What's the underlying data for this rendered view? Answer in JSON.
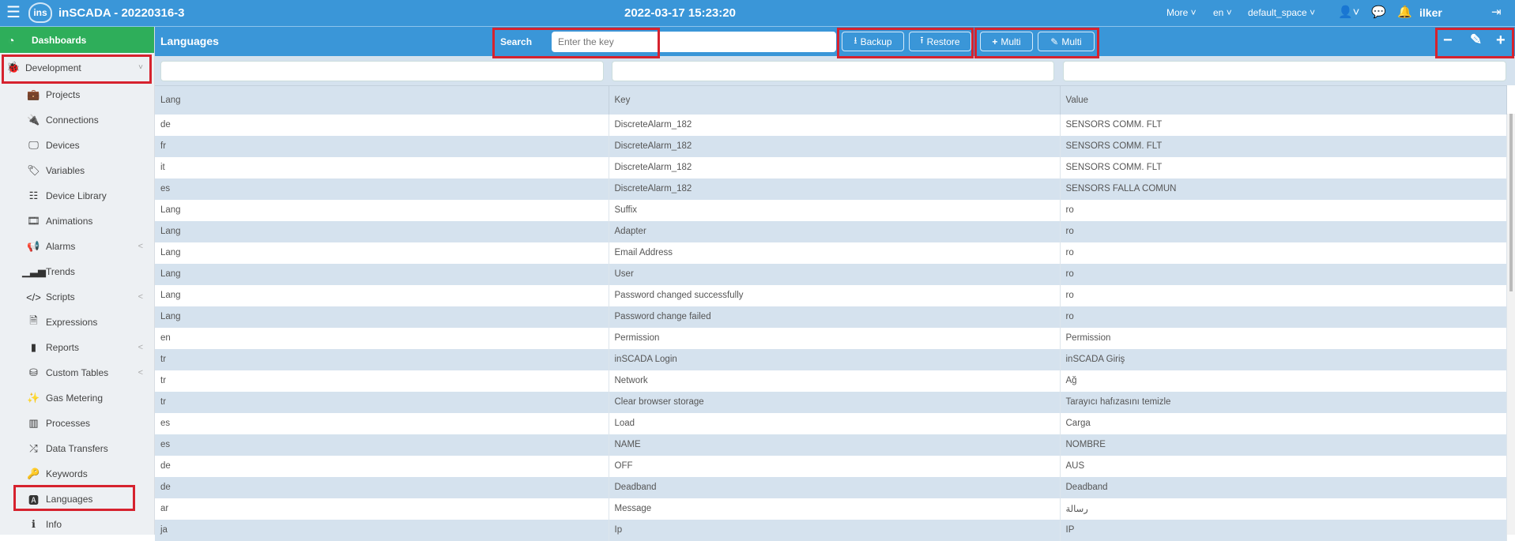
{
  "topbar": {
    "title": "inSCADA - 20220316-3",
    "logo_text": "ins",
    "datetime": "2022-03-17 15:23:20",
    "more": "More",
    "lang": "en",
    "space": "default_space",
    "user": "ilker"
  },
  "sidebar": {
    "dashboards": "Dashboards",
    "development": "Development",
    "items": [
      {
        "label": "Projects",
        "icon": "briefcase-icon",
        "g": "💼",
        "chev": false
      },
      {
        "label": "Connections",
        "icon": "plug-icon",
        "g": "🔌",
        "chev": false
      },
      {
        "label": "Devices",
        "icon": "monitor-icon",
        "g": "🖵",
        "chev": false
      },
      {
        "label": "Variables",
        "icon": "tags-icon",
        "g": "🏷",
        "chev": false
      },
      {
        "label": "Device Library",
        "icon": "sitemap-icon",
        "g": "☷",
        "chev": false
      },
      {
        "label": "Animations",
        "icon": "film-icon",
        "g": "🎞",
        "chev": false
      },
      {
        "label": "Alarms",
        "icon": "bullhorn-icon",
        "g": "📢",
        "chev": true
      },
      {
        "label": "Trends",
        "icon": "signal-icon",
        "g": "▁▃▅",
        "chev": false
      },
      {
        "label": "Scripts",
        "icon": "code-icon",
        "g": "</>",
        "chev": true
      },
      {
        "label": "Expressions",
        "icon": "file-code-icon",
        "g": "🗎",
        "chev": false
      },
      {
        "label": "Reports",
        "icon": "file-icon",
        "g": "▮",
        "chev": true
      },
      {
        "label": "Custom Tables",
        "icon": "database-icon",
        "g": "⛁",
        "chev": true
      },
      {
        "label": "Gas Metering",
        "icon": "magic-wand-icon",
        "g": "✨",
        "chev": false
      },
      {
        "label": "Processes",
        "icon": "microchip-icon",
        "g": "▥",
        "chev": false
      },
      {
        "label": "Data Transfers",
        "icon": "shuffle-icon",
        "g": "⤮",
        "chev": false
      },
      {
        "label": "Keywords",
        "icon": "key-icon",
        "g": "🔑",
        "chev": false
      },
      {
        "label": "Languages",
        "icon": "language-icon",
        "g": "🅰",
        "chev": false
      },
      {
        "label": "Info",
        "icon": "info-icon",
        "g": "ℹ",
        "chev": false
      }
    ]
  },
  "header": {
    "title": "Languages",
    "search_label": "Search",
    "search_placeholder": "Enter the key",
    "backup": "Backup",
    "restore": "Restore",
    "add_multi": "Multi",
    "edit_multi": "Multi"
  },
  "table": {
    "columns": [
      "Lang",
      "Key",
      "Value"
    ],
    "rows": [
      [
        "de",
        "DiscreteAlarm_182",
        "SENSORS COMM. FLT"
      ],
      [
        "fr",
        "DiscreteAlarm_182",
        "SENSORS COMM. FLT"
      ],
      [
        "it",
        "DiscreteAlarm_182",
        "SENSORS COMM. FLT"
      ],
      [
        "es",
        "DiscreteAlarm_182",
        "SENSORS FALLA COMUN"
      ],
      [
        "Lang",
        "Suffix",
        "ro"
      ],
      [
        "Lang",
        "Adapter",
        "ro"
      ],
      [
        "Lang",
        "Email Address",
        "ro"
      ],
      [
        "Lang",
        "User",
        "ro"
      ],
      [
        "Lang",
        "Password changed successfully",
        "ro"
      ],
      [
        "Lang",
        "Password change failed",
        "ro"
      ],
      [
        "en",
        "Permission",
        "Permission"
      ],
      [
        "tr",
        "inSCADA Login",
        "inSCADA Giriş"
      ],
      [
        "tr",
        "Network",
        "Ağ"
      ],
      [
        "tr",
        "Clear browser storage",
        "Tarayıcı hafızasını temizle"
      ],
      [
        "es",
        "Load",
        "Carga"
      ],
      [
        "es",
        "NAME",
        "NOMBRE"
      ],
      [
        "de",
        "OFF",
        "AUS"
      ],
      [
        "de",
        "Deadband",
        "Deadband"
      ],
      [
        "ar",
        "Message",
        "رسالة"
      ],
      [
        "ja",
        "Ip",
        "IP"
      ]
    ]
  },
  "colors": {
    "primary": "#3a96d8",
    "dashboards": "#2eae5a",
    "highlight": "#d6222e",
    "row_alt": "#d5e2ee"
  }
}
